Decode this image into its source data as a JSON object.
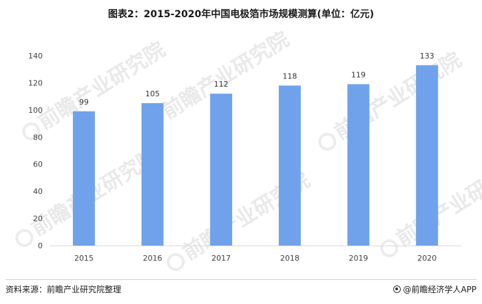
{
  "title": "图表2：2015-2020年中国电极箔市场规模测算(单位：亿元)",
  "source": "资料来源：前瞻产业研究院整理",
  "brand": "@前瞻经济学人APP",
  "watermark": "前瞻产业研究院",
  "colors": {
    "bar": "#6fa2eb",
    "axis": "#d9d9d9",
    "tick_text": "#404040"
  },
  "chart_data": {
    "type": "bar",
    "title": "图表2：2015-2020年中国电极箔市场规模测算(单位：亿元)",
    "xlabel": "",
    "ylabel": "",
    "categories": [
      "2015",
      "2016",
      "2017",
      "2018",
      "2019",
      "2020"
    ],
    "values": [
      99,
      105,
      112,
      118,
      119,
      133
    ],
    "ylim": [
      0,
      140
    ],
    "yticks": [
      0,
      20,
      40,
      60,
      80,
      100,
      120,
      140
    ],
    "grid": false,
    "legend": "none",
    "data_labels": true
  }
}
